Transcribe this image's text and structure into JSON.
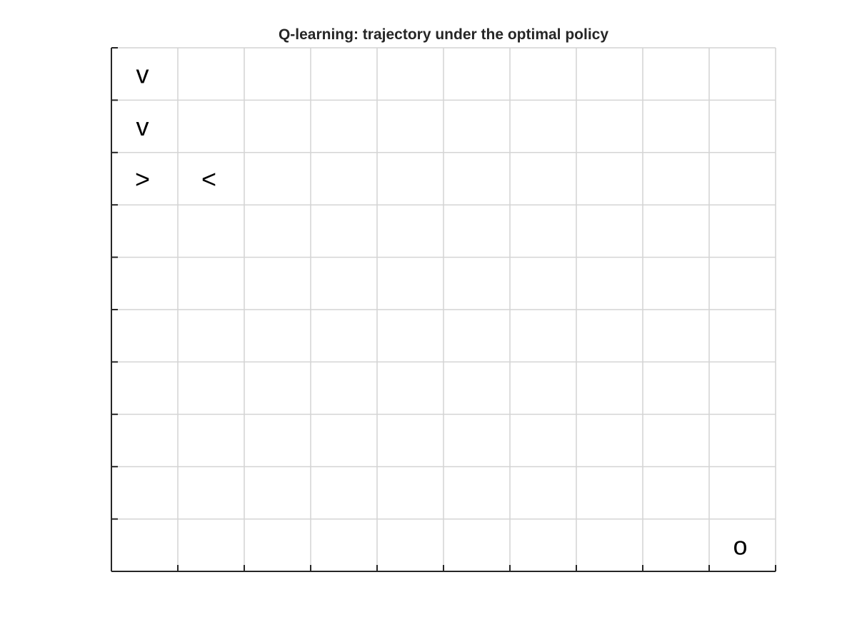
{
  "chart_data": {
    "type": "table",
    "title": "Q-learning: trajectory under the optimal policy",
    "xlabel": "",
    "ylabel": "",
    "grid": true,
    "columns": 10,
    "rows": 10,
    "xlim": [
      0,
      10
    ],
    "ylim": [
      0,
      10
    ],
    "cells": [
      {
        "row": 1,
        "col": 1,
        "symbol": "v"
      },
      {
        "row": 2,
        "col": 1,
        "symbol": "v"
      },
      {
        "row": 3,
        "col": 1,
        "symbol": ">"
      },
      {
        "row": 3,
        "col": 2,
        "symbol": "<"
      },
      {
        "row": 10,
        "col": 10,
        "symbol": "o"
      }
    ],
    "colors": {
      "grid": "#d4d4d4",
      "axis": "#262626",
      "symbol": "#000000"
    }
  }
}
